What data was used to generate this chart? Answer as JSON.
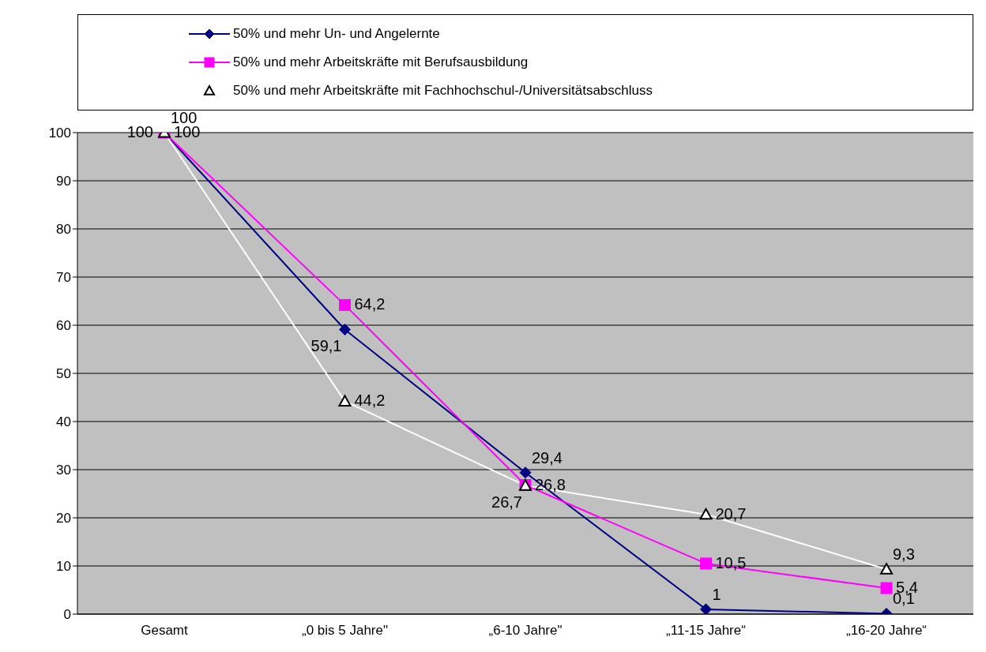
{
  "chart_data": {
    "type": "line",
    "categories": [
      "Gesamt",
      "„0 bis 5 Jahre\"",
      "„6-10 Jahre\"",
      "„11-15 Jahre“",
      "„16-20 Jahre“"
    ],
    "series": [
      {
        "name": "50% und mehr Un- und Angelernte",
        "color": "#000080",
        "marker": "diamond",
        "values": [
          100,
          59.1,
          29.4,
          1,
          0.1
        ],
        "value_labels": [
          "100",
          "59,1",
          "29,4",
          "1",
          "0,1"
        ]
      },
      {
        "name": "50% und mehr Arbeitskräfte mit Berufsausbildung",
        "color": "#ff00ff",
        "marker": "square",
        "values": [
          100,
          64.2,
          26.8,
          10.5,
          5.4
        ],
        "value_labels": [
          "100",
          "64,2",
          "26,8",
          "10,5",
          "5,4"
        ]
      },
      {
        "name": "50% und mehr Arbeitskräfte mit Fachhochschul-/Universitätsabschluss",
        "color": "#ffffff",
        "marker": "triangle",
        "values": [
          100,
          44.2,
          26.7,
          20.7,
          9.3
        ],
        "value_labels": [
          "100",
          "44,2",
          "26,7",
          "20,7",
          "9,3"
        ]
      }
    ],
    "ylim": [
      0,
      100
    ],
    "yticks": [
      0,
      10,
      20,
      30,
      40,
      50,
      60,
      70,
      80,
      90,
      100
    ],
    "grid": "y",
    "legend": "top"
  }
}
